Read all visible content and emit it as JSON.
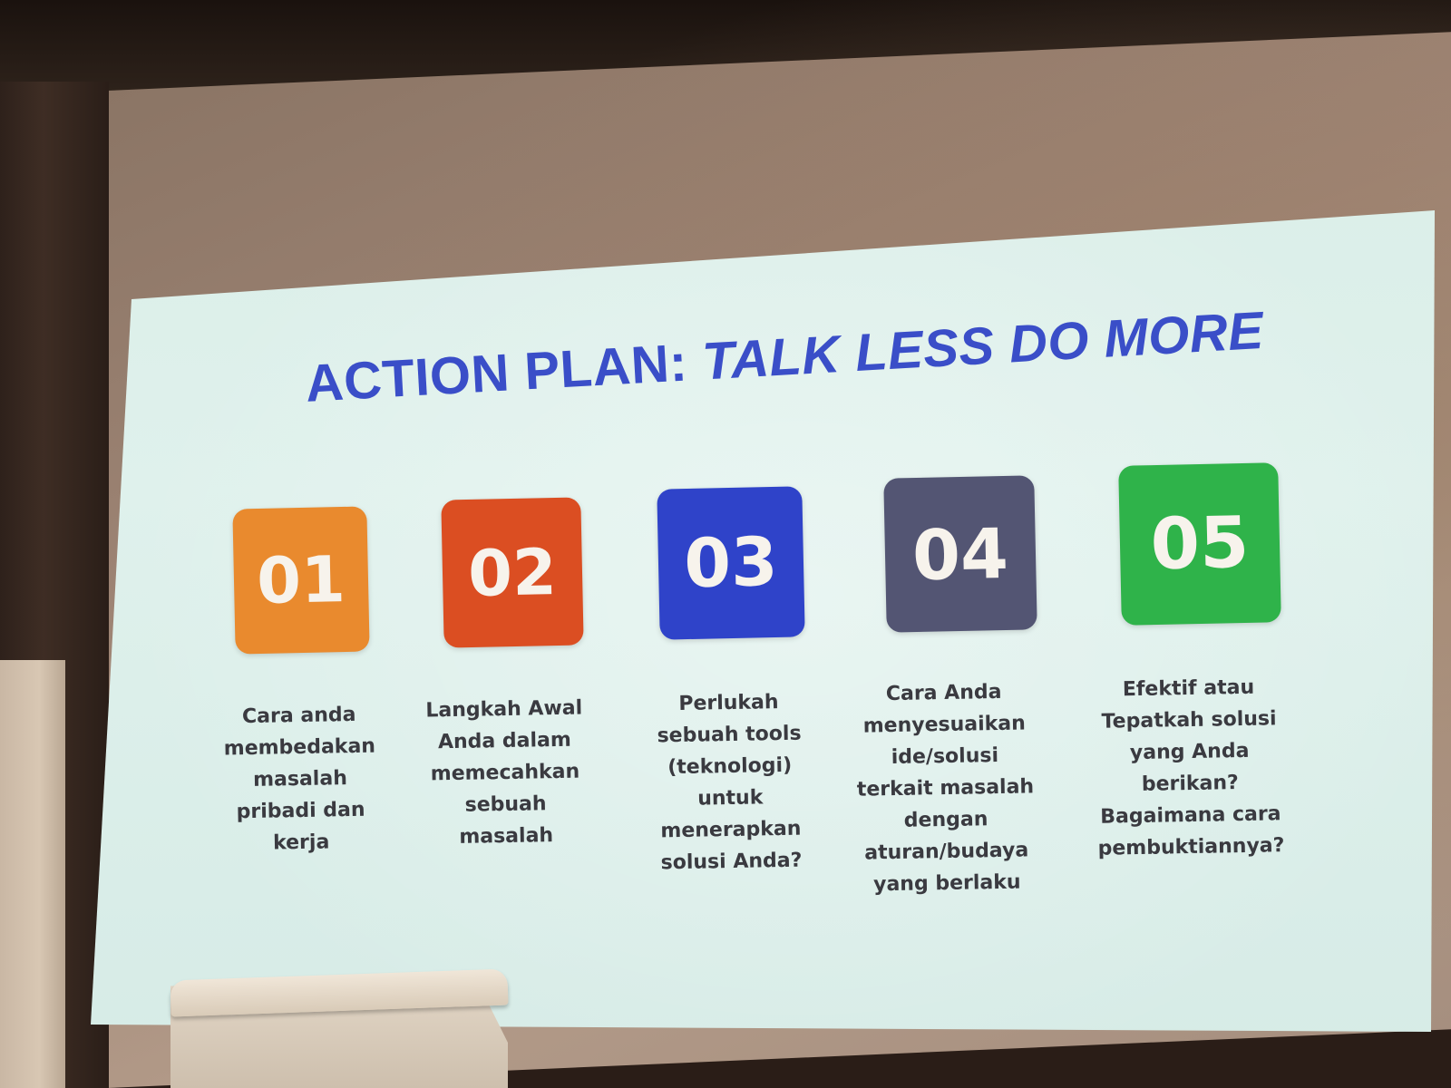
{
  "slide": {
    "title_prefix": "ACTION PLAN: ",
    "title_emphasis": "TALK LESS DO MORE",
    "items": [
      {
        "number": "01",
        "color": "#e98a2e",
        "text": "Cara anda\nmembedakan\nmasalah\npribadi dan\nkerja"
      },
      {
        "number": "02",
        "color": "#db4e22",
        "text": "Langkah Awal\nAnda dalam\nmemecahkan\nsebuah\nmasalah"
      },
      {
        "number": "03",
        "color": "#2f43c9",
        "text": "Perlukah\nsebuah tools\n(teknologi)\nuntuk\nmenerapkan\nsolusi Anda?"
      },
      {
        "number": "04",
        "color": "#535573",
        "text": "Cara Anda\nmenyesuaikan\nide/solusi\nterkait masalah\ndengan\naturan/budaya\nyang berlaku"
      },
      {
        "number": "05",
        "color": "#2fb34a",
        "text": "Efektif atau\nTepatkah solusi\nyang Anda\nberikan?\nBagaimana cara\npembuktiannya?"
      }
    ]
  },
  "colors": {
    "title": "#3a4ec8",
    "slide_background": "#dcefea",
    "body_text": "#3a3a40"
  }
}
